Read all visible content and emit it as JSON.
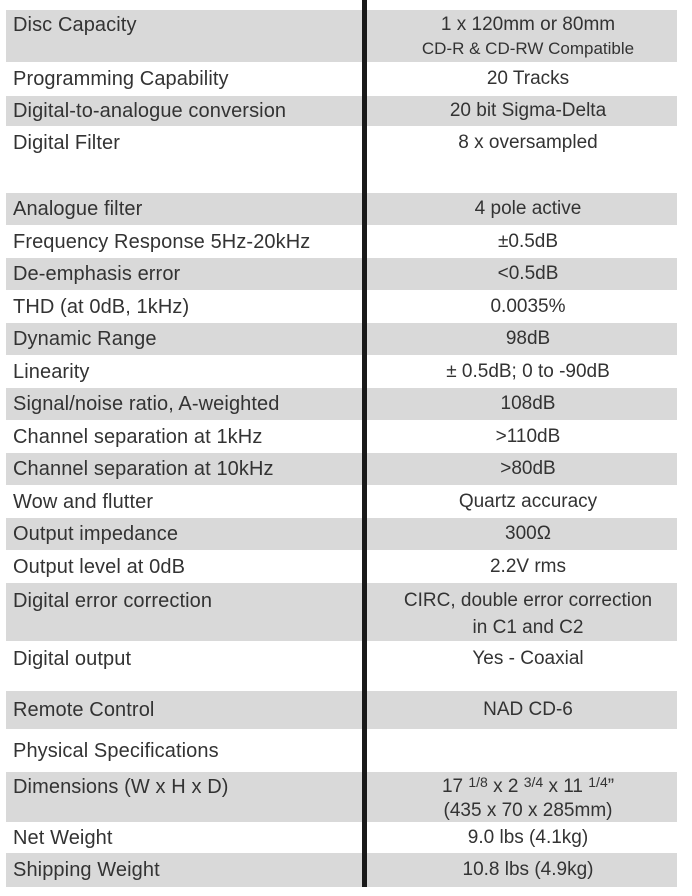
{
  "meta": {
    "shade_color": "#d9d9d9",
    "text_color": "#333333",
    "divider_color": "#1a1a1a",
    "bg_color": "#ffffff"
  },
  "table": {
    "rows": [
      {
        "key": "disc-capacity",
        "label": "Disc Capacity",
        "value_line1": "1 x 120mm or 80mm",
        "value_line2": "CD-R & CD-RW Compatible"
      },
      {
        "key": "programming-capability",
        "label": "Programming Capability",
        "value": "20 Tracks"
      },
      {
        "key": "digital-to-analogue-conversion",
        "label": "Digital-to-analogue conversion",
        "value": "20 bit Sigma-Delta"
      },
      {
        "key": "digital-filter",
        "label": "Digital Filter",
        "value": "8 x oversampled"
      },
      {
        "key": "analogue-filter",
        "label": "Analogue filter",
        "value": "4 pole active"
      },
      {
        "key": "frequency-response",
        "label": "Frequency Response 5Hz-20kHz",
        "value": "±0.5dB"
      },
      {
        "key": "de-emphasis-error",
        "label": "De-emphasis error",
        "value": "<0.5dB"
      },
      {
        "key": "thd",
        "label": "THD (at 0dB, 1kHz)",
        "value": "0.0035%"
      },
      {
        "key": "dynamic-range",
        "label": "Dynamic Range",
        "value": "98dB"
      },
      {
        "key": "linearity",
        "label": "Linearity",
        "value": "± 0.5dB; 0 to -90dB"
      },
      {
        "key": "signal-noise-ratio",
        "label": "Signal/noise ratio, A-weighted",
        "value": "108dB"
      },
      {
        "key": "channel-separation-1khz",
        "label": "Channel separation at 1kHz",
        "value": ">110dB"
      },
      {
        "key": "channel-separation-10khz",
        "label": "Channel separation at 10kHz",
        "value": ">80dB"
      },
      {
        "key": "wow-and-flutter",
        "label": "Wow and flutter",
        "value": "Quartz accuracy"
      },
      {
        "key": "output-impedance",
        "label": "Output impedance",
        "value": "300Ω"
      },
      {
        "key": "output-level",
        "label": "Output level at 0dB",
        "value": "2.2V rms"
      },
      {
        "key": "digital-error-correction",
        "label": "Digital error correction",
        "value_line1": "CIRC, double error correction",
        "value_line2": "in C1 and C2"
      },
      {
        "key": "digital-output",
        "label": "Digital output",
        "value": "Yes - Coaxial"
      },
      {
        "key": "remote-control",
        "label": "Remote Control",
        "value": "NAD CD-6"
      },
      {
        "key": "physical-specifications",
        "label": "Physical Specifications",
        "value": ""
      },
      {
        "key": "dimensions",
        "label": "Dimensions (W x H x D)",
        "value_parts": {
          "p0": "17 ",
          "f0": "1/8",
          "p1": " x 2 ",
          "f1": "3/4",
          "p2": " x 11 ",
          "f2": "1/4",
          "p3": "”"
        },
        "value_line2": "(435 x 70 x 285mm)"
      },
      {
        "key": "net-weight",
        "label": "Net Weight",
        "value": "9.0 lbs (4.1kg)"
      },
      {
        "key": "shipping-weight",
        "label": "Shipping Weight",
        "value": "10.8 lbs (4.9kg)"
      }
    ]
  }
}
